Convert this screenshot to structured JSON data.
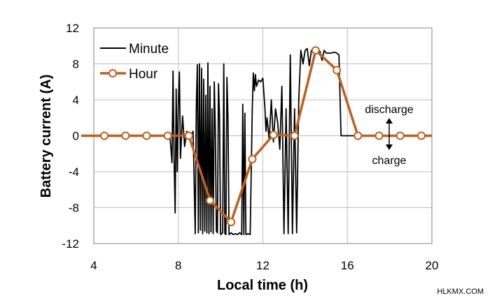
{
  "chart_data": {
    "type": "line",
    "xlabel": "Local time (h)",
    "ylabel": "Battery current (A)",
    "xlim": [
      4,
      20
    ],
    "ylim": [
      -12,
      12
    ],
    "x_ticks": [
      4,
      8,
      12,
      16,
      20
    ],
    "y_ticks": [
      -12,
      -8,
      -4,
      0,
      4,
      8,
      12
    ],
    "grid": "vertical and horizontal",
    "legend": "top-left",
    "series": [
      {
        "name": "Minute",
        "color": "#000000",
        "style": "thin line",
        "x": [
          4.0,
          7.6,
          7.7,
          7.75,
          7.8,
          7.85,
          7.9,
          7.95,
          8.0,
          8.05,
          8.1,
          8.2,
          8.3,
          8.4,
          8.5,
          8.6,
          8.7,
          8.8,
          8.85,
          8.9,
          8.95,
          9.0,
          9.05,
          9.1,
          9.15,
          9.2,
          9.25,
          9.3,
          9.35,
          9.4,
          9.45,
          9.5,
          9.55,
          9.6,
          9.65,
          9.7,
          9.75,
          9.8,
          9.85,
          9.9,
          9.95,
          10.0,
          10.1,
          10.15,
          10.2,
          10.25,
          10.3,
          10.35,
          10.4,
          10.5,
          10.6,
          10.7,
          10.8,
          10.9,
          11.0,
          11.05,
          11.1,
          11.15,
          11.2,
          11.3,
          11.4,
          11.5,
          11.55,
          11.6,
          11.65,
          11.7,
          11.8,
          11.9,
          12.0,
          12.1,
          12.15,
          12.2,
          12.3,
          12.4,
          12.5,
          12.6,
          12.7,
          12.8,
          12.9,
          13.0,
          13.1,
          13.2,
          13.3,
          13.4,
          13.5,
          13.6,
          13.7,
          13.8,
          13.9,
          14.0,
          14.1,
          14.2,
          14.3,
          14.5,
          14.7,
          14.8,
          14.9,
          15.0,
          15.2,
          15.4,
          15.5,
          15.6,
          15.7,
          15.8,
          16.0,
          16.2,
          16.5,
          20.0
        ],
        "y": [
          0,
          0,
          -3,
          7.2,
          -2.5,
          -8.6,
          5.2,
          -4,
          3.5,
          7.1,
          -2.5,
          2.2,
          -1.2,
          0.5,
          0.2,
          0,
          0.5,
          -10.9,
          3,
          7.9,
          -10.8,
          8,
          -10.5,
          7.5,
          -10.9,
          6.3,
          -10.6,
          4.5,
          -10.8,
          8.1,
          -10.9,
          5.5,
          -10.7,
          3,
          -10.9,
          6,
          0.5,
          -10.6,
          -10.8,
          5.8,
          2.3,
          -11,
          -10.8,
          8,
          -10.9,
          -11,
          6.5,
          2,
          -11,
          -10.8,
          -11,
          -10.9,
          -11,
          -10.8,
          -11,
          3.5,
          -11,
          2.5,
          -11,
          -10.9,
          -11,
          3,
          7,
          5,
          6.8,
          5.5,
          6.2,
          6,
          6.4,
          3,
          0.5,
          2,
          -0.5,
          4,
          -0.7,
          3,
          1.5,
          -1.5,
          5.5,
          -10.9,
          3,
          -10.9,
          9,
          -10.9,
          3,
          -10.8,
          4,
          9.5,
          8,
          9.5,
          9.7,
          7.8,
          9.5,
          9.6,
          9.4,
          8.4,
          9.5,
          9.2,
          9.2,
          9.3,
          9.2,
          9.0,
          0,
          0,
          0,
          0,
          0,
          0
        ]
      },
      {
        "name": "Hour",
        "color": "#c0601b",
        "style": "thick line with open circle markers",
        "x": [
          4.5,
          5.5,
          6.5,
          7.5,
          8.5,
          9.5,
          10.5,
          11.5,
          12.5,
          13.5,
          14.5,
          15.5,
          16.5,
          17.5,
          18.5,
          19.5
        ],
        "y": [
          0,
          0,
          0,
          0,
          0,
          -7.2,
          -9.6,
          -2.6,
          0.1,
          0,
          9.5,
          7.3,
          0,
          0,
          0,
          0
        ]
      }
    ],
    "annotations": {
      "discharge": "discharge",
      "charge": "charge"
    }
  },
  "legend": {
    "minute_label": "Minute",
    "hour_label": "Hour"
  },
  "watermark": "HLKMX.COM"
}
